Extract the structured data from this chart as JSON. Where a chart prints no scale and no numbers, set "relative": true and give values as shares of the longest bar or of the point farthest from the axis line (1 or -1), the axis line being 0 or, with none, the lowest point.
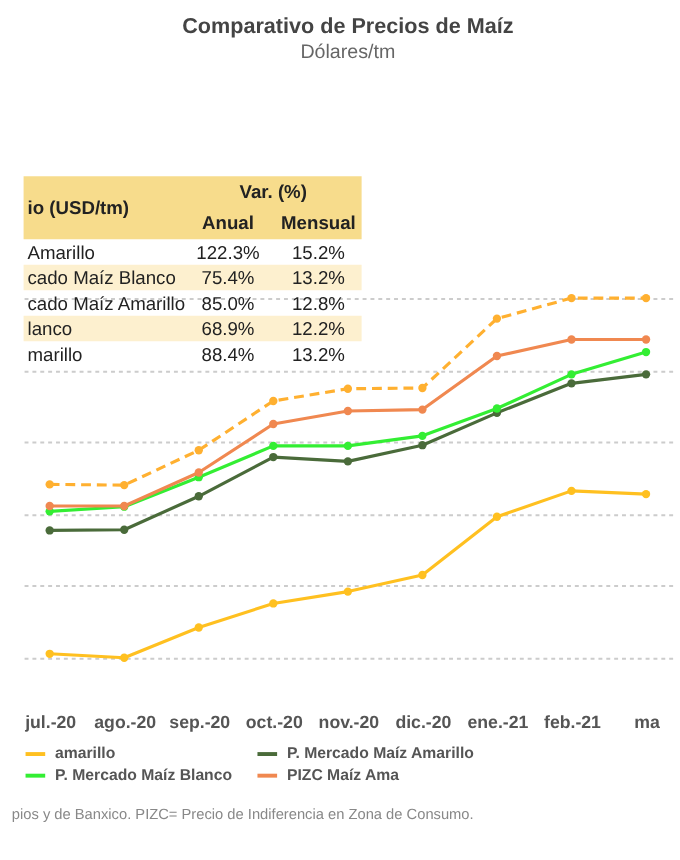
{
  "chart_data": {
    "type": "line",
    "title": "Comparativo de Precios de Maíz",
    "subtitle": "Dólares/tm",
    "relative": true,
    "categories": [
      "jul.-20",
      "ago.-20",
      "sep.-20",
      "oct.-20",
      "nov.-20",
      "dic.-20",
      "ene.-21",
      "feb.-21",
      "ma"
    ],
    "series": [
      {
        "name": "amarillo",
        "color": "#ffc020",
        "values": [
          0.011,
          0,
          0.084,
          0.151,
          0.184,
          0.23,
          0.392,
          0.464,
          0.455
        ]
      },
      {
        "name": "P. Mercado Maíz Amarillo",
        "color": "#4a6b3a",
        "values": [
          0.354,
          0.356,
          0.449,
          0.558,
          0.546,
          0.591,
          0.681,
          0.763,
          0.788
        ]
      },
      {
        "name": "P. Mercado Maíz Blanco",
        "color": "#33ee33",
        "values": [
          0.407,
          0.42,
          0.502,
          0.589,
          0.589,
          0.617,
          0.693,
          0.788,
          0.85
        ]
      },
      {
        "name": "PIZC Maíz Ama",
        "color": "#f08850",
        "values": [
          0.422,
          0.422,
          0.515,
          0.65,
          0.686,
          0.69,
          0.839,
          0.885,
          0.885
        ]
      },
      {
        "color": "#ffb030",
        "line_style": "dashed",
        "values": [
          0.482,
          0.48,
          0.577,
          0.714,
          0.748,
          0.75,
          0.943,
          1,
          1
        ]
      }
    ],
    "marker": "circle",
    "grid": "y",
    "legend": "bottom",
    "annotations": [
      "io (USD/tm)",
      "Var. (%)",
      "Anual",
      "Mensual",
      "Amarillo",
      "122.3%",
      "15.2%",
      "cado Maíz Blanco",
      "75.4%",
      "13.2%",
      "cado Maíz Amarillo",
      "85.0%",
      "12.8%",
      "lanco",
      "68.9%",
      "12.2%",
      "marillo",
      "88.4%",
      "13.2%",
      "pios y de Banxico. PIZC= Precio de Indiferencia en Zona de Consumo."
    ]
  }
}
